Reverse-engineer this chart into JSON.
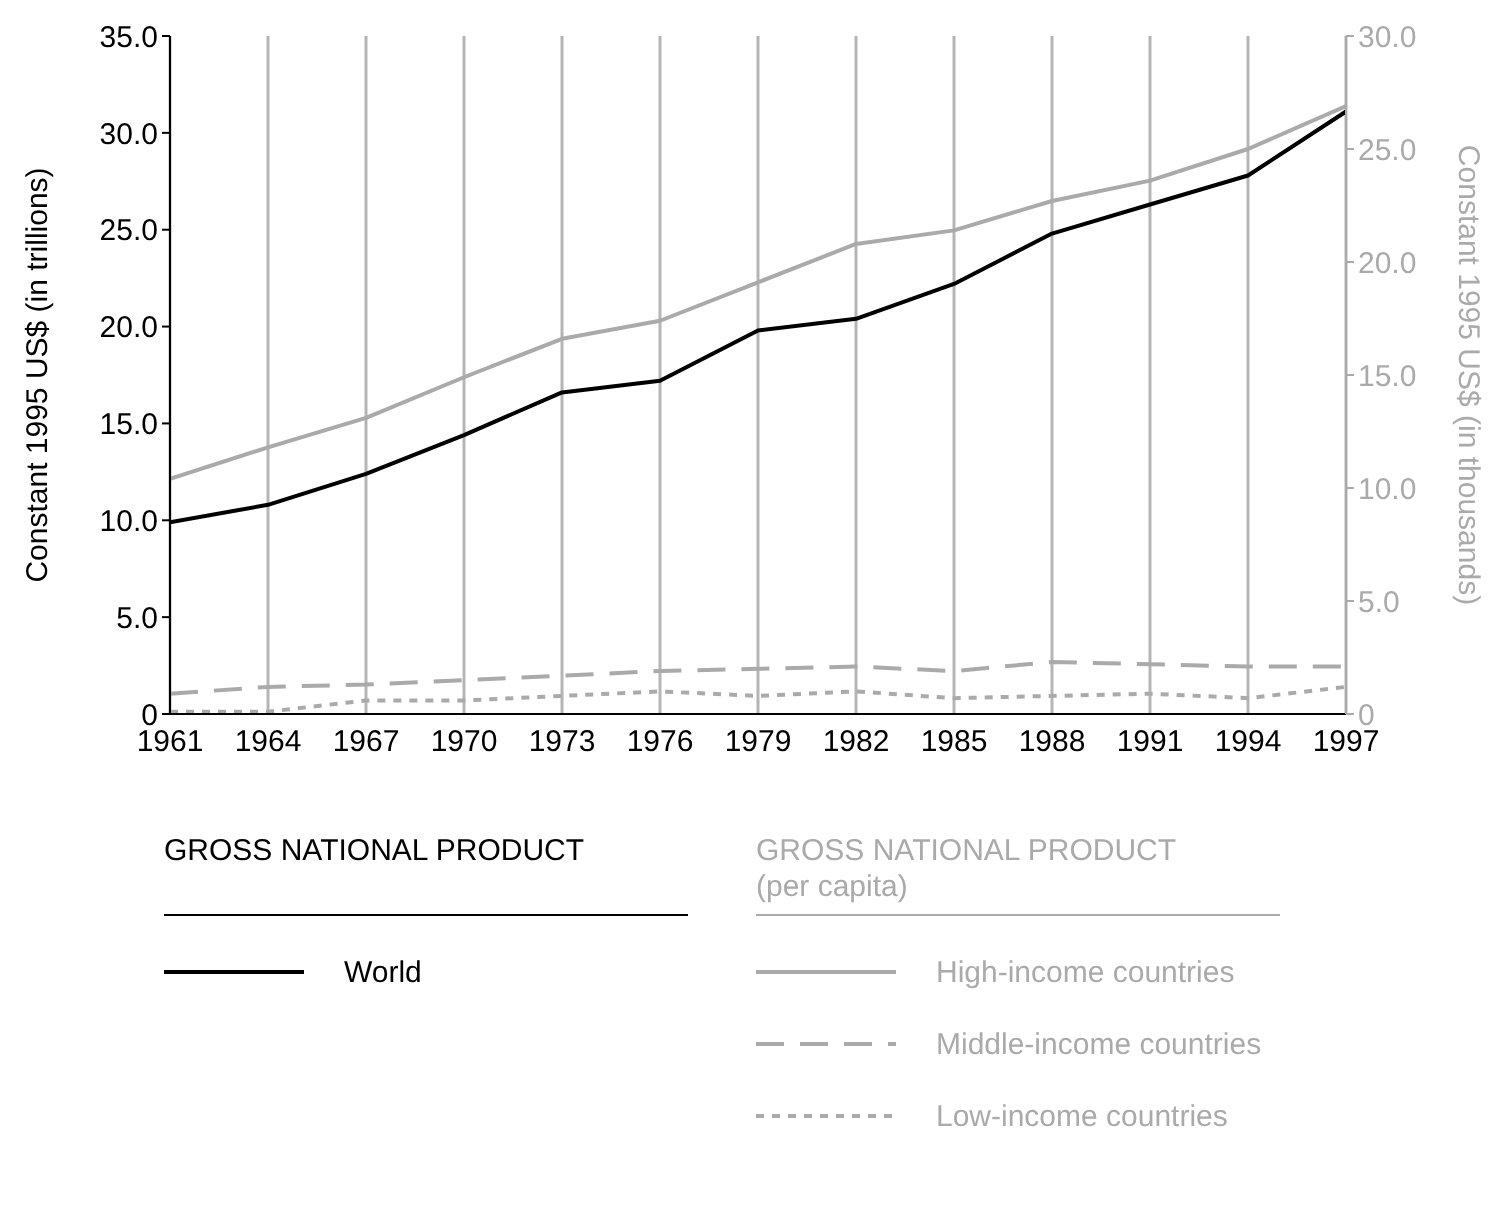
{
  "chart_data": {
    "type": "line",
    "x": [
      1961,
      1964,
      1967,
      1970,
      1973,
      1976,
      1979,
      1982,
      1985,
      1988,
      1991,
      1994,
      1997
    ],
    "series": [
      {
        "name": "World",
        "color": "#000000",
        "axis": "y",
        "line_style": "solid",
        "values": [
          9.9,
          10.8,
          12.4,
          14.4,
          16.6,
          17.2,
          19.8,
          20.4,
          22.2,
          24.8,
          26.3,
          27.8,
          31.1
        ]
      },
      {
        "name": "High-income countries",
        "color": "#aaaaaa",
        "axis": "y2",
        "line_style": "solid",
        "values": [
          10.4,
          11.8,
          13.1,
          14.9,
          16.6,
          17.4,
          19.1,
          20.8,
          21.4,
          22.7,
          23.6,
          25.0,
          26.9
        ]
      },
      {
        "name": "Middle-income countries",
        "color": "#aaaaaa",
        "axis": "y2",
        "line_style": "dashed",
        "values": [
          0.9,
          1.2,
          1.3,
          1.5,
          1.7,
          1.9,
          2.0,
          2.1,
          1.9,
          2.3,
          2.2,
          2.1,
          2.1
        ]
      },
      {
        "name": "Low-income countries",
        "color": "#aaaaaa",
        "axis": "y2",
        "line_style": "dotted",
        "values": [
          0.1,
          0.1,
          0.6,
          0.6,
          0.8,
          1.0,
          0.8,
          1.0,
          0.7,
          0.8,
          0.9,
          0.7,
          1.2
        ]
      }
    ],
    "xlim": [
      1961,
      1997
    ],
    "xticks": [
      1961,
      1964,
      1967,
      1970,
      1973,
      1976,
      1979,
      1982,
      1985,
      1988,
      1991,
      1994,
      1997
    ],
    "ylim": [
      0,
      35
    ],
    "yticks": [
      {
        "value": 0,
        "label": "0"
      },
      {
        "value": 5,
        "label": "5.0"
      },
      {
        "value": 10,
        "label": "10.0"
      },
      {
        "value": 15,
        "label": "15.0"
      },
      {
        "value": 20,
        "label": "20.0"
      },
      {
        "value": 25,
        "label": "25.0"
      },
      {
        "value": 30,
        "label": "30.0"
      },
      {
        "value": 35,
        "label": "35.0"
      }
    ],
    "y2lim": [
      0,
      30
    ],
    "y2ticks": [
      {
        "value": 0,
        "label": "0"
      },
      {
        "value": 5,
        "label": "5.0"
      },
      {
        "value": 10,
        "label": "10.0"
      },
      {
        "value": 15,
        "label": "15.0"
      },
      {
        "value": 20,
        "label": "20.0"
      },
      {
        "value": 25,
        "label": "25.0"
      },
      {
        "value": 30,
        "label": "30.0"
      }
    ],
    "ylabel": "Constant 1995 US$ (in trillions)",
    "y2label": "Constant 1995 US$ (in thousands)",
    "annotations": [
      "GROSS NATIONAL PRODUCT",
      "GROSS NATIONAL PRODUCT (per capita)"
    ],
    "grid": "x",
    "legend": "bottom",
    "marker": "none"
  }
}
